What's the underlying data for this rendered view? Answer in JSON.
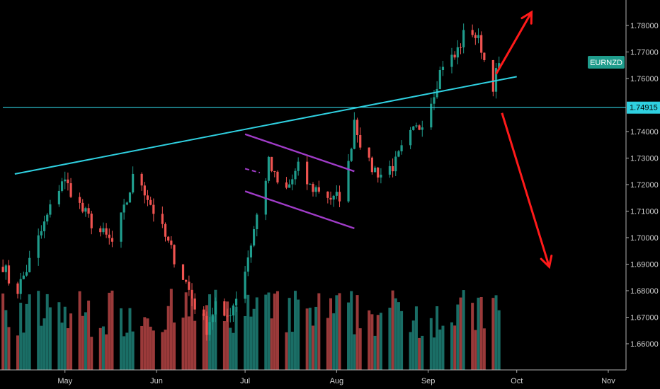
{
  "chart_data": {
    "type": "candlestick",
    "symbol": "EURNZD",
    "last_price": "1.74915",
    "colors": {
      "background": "#000000",
      "up_candle": "#1f9c8c",
      "down_candle": "#ef5350",
      "up_volume": "#1a6e66",
      "down_volume": "#9b3a3a",
      "trendline": "#2fd0e0",
      "channel": "#a03cc8",
      "projection_arrow": "#ff1a1a",
      "symbol_badge": "#1f9c8c",
      "price_badge": "#2fd0e0"
    },
    "ylim": [
      1.65,
      1.785
    ],
    "y_ticks": [
      "1.78000",
      "1.77000",
      "1.76000",
      "1.74000",
      "1.73000",
      "1.72000",
      "1.71000",
      "1.70000",
      "1.69000",
      "1.68000",
      "1.67000",
      "1.66000"
    ],
    "y_tick_values": [
      1.78,
      1.77,
      1.76,
      1.74,
      1.73,
      1.72,
      1.71,
      1.7,
      1.69,
      1.68,
      1.67,
      1.66
    ],
    "x_ticks": [
      "May",
      "Jun",
      "Jul",
      "Aug",
      "Sep",
      "Oct",
      "Nov"
    ],
    "x_tick_dates": [
      "2019-05-01",
      "2019-06-01",
      "2019-07-01",
      "2019-08-01",
      "2019-09-01",
      "2019-10-01",
      "2019-11-01"
    ],
    "x_range": [
      "2019-04-09",
      "2019-11-07"
    ],
    "price_path": [
      [
        "2019-04-10",
        1.69
      ],
      [
        "2019-04-14",
        1.678
      ],
      [
        "2019-04-18",
        1.688
      ],
      [
        "2019-04-24",
        1.705
      ],
      [
        "2019-04-30",
        1.722
      ],
      [
        "2019-05-03",
        1.718
      ],
      [
        "2019-05-07",
        1.71
      ],
      [
        "2019-05-12",
        1.703
      ],
      [
        "2019-05-17",
        1.698
      ],
      [
        "2019-05-21",
        1.71
      ],
      [
        "2019-05-25",
        1.726
      ],
      [
        "2019-05-28",
        1.718
      ],
      [
        "2019-06-02",
        1.705
      ],
      [
        "2019-06-06",
        1.695
      ],
      [
        "2019-06-11",
        1.683
      ],
      [
        "2019-06-15",
        1.672
      ],
      [
        "2019-06-18",
        1.666
      ],
      [
        "2019-06-21",
        1.675
      ],
      [
        "2019-06-24",
        1.668
      ],
      [
        "2019-06-27",
        1.675
      ],
      [
        "2019-07-01",
        1.688
      ],
      [
        "2019-07-05",
        1.708
      ],
      [
        "2019-07-09",
        1.728
      ],
      [
        "2019-07-12",
        1.72
      ],
      [
        "2019-07-15",
        1.718
      ],
      [
        "2019-07-19",
        1.726
      ],
      [
        "2019-07-23",
        1.719
      ],
      [
        "2019-07-27",
        1.718
      ],
      [
        "2019-07-31",
        1.714
      ],
      [
        "2019-08-04",
        1.718
      ],
      [
        "2019-08-07",
        1.745
      ],
      [
        "2019-08-11",
        1.728
      ],
      [
        "2019-08-16",
        1.724
      ],
      [
        "2019-08-21",
        1.728
      ],
      [
        "2019-08-25",
        1.737
      ],
      [
        "2019-08-29",
        1.742
      ],
      [
        "2019-09-02",
        1.752
      ],
      [
        "2019-09-06",
        1.766
      ],
      [
        "2019-09-10",
        1.768
      ],
      [
        "2019-09-13",
        1.776
      ],
      [
        "2019-09-16",
        1.778
      ],
      [
        "2019-09-19",
        1.772
      ],
      [
        "2019-09-21",
        1.762
      ],
      [
        "2019-09-23",
        1.758
      ],
      [
        "2019-09-25",
        1.765
      ]
    ],
    "trendline": [
      [
        "2019-04-14",
        1.724
      ],
      [
        "2019-10-01",
        1.7607
      ]
    ],
    "horizontal_level": 1.74915,
    "channel_upper": [
      [
        "2019-07-01",
        1.739
      ],
      [
        "2019-08-07",
        1.725
      ]
    ],
    "channel_lower": [
      [
        "2019-07-01",
        1.7175
      ],
      [
        "2019-08-07",
        1.7035
      ]
    ],
    "channel_mid": [
      [
        "2019-07-01",
        1.726
      ],
      [
        "2019-07-06",
        1.7245
      ]
    ],
    "arrow_up": {
      "from": [
        "2019-09-24",
        1.7617
      ],
      "to": [
        "2019-10-06",
        1.785
      ]
    },
    "arrow_down": {
      "from": [
        "2019-09-26",
        1.747
      ],
      "to": [
        "2019-10-12",
        1.689
      ]
    }
  }
}
